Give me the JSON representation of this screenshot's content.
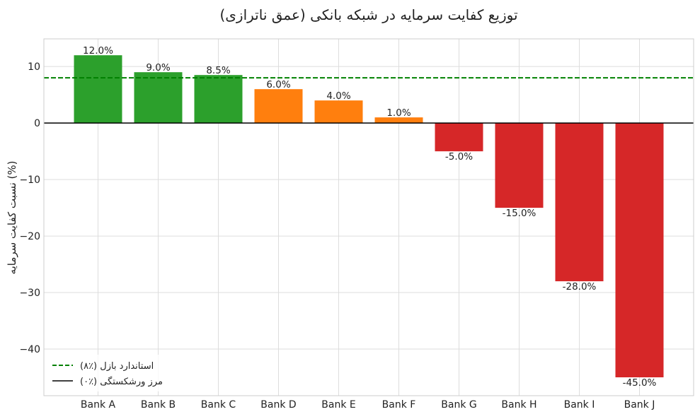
{
  "chart_data": {
    "type": "bar",
    "title": "توزیع کفایت سرمایه در شبکه بانکی (عمق ناترازی)",
    "xlabel": "",
    "ylabel": "نسبت کفایت سرمایه (%)",
    "categories": [
      "Bank A",
      "Bank B",
      "Bank C",
      "Bank D",
      "Bank E",
      "Bank F",
      "Bank G",
      "Bank H",
      "Bank I",
      "Bank J"
    ],
    "values": [
      12.0,
      9.0,
      8.5,
      6.0,
      4.0,
      1.0,
      -5.0,
      -15.0,
      -28.0,
      -45.0
    ],
    "labels": [
      "12.0%",
      "9.0%",
      "8.5%",
      "6.0%",
      "4.0%",
      "1.0%",
      "-5.0%",
      "-15.0%",
      "-28.0%",
      "-45.0%"
    ],
    "colors": [
      "#2ca02c",
      "#2ca02c",
      "#2ca02c",
      "#ff7f0e",
      "#ff7f0e",
      "#ff7f0e",
      "#d62728",
      "#d62728",
      "#d62728",
      "#d62728"
    ],
    "ylim": [
      -48.25,
      14.9
    ],
    "xlim": [
      -0.9,
      9.9
    ],
    "yticks": [
      10,
      0,
      -10,
      -20,
      -30,
      -40
    ],
    "ytick_labels": [
      "10",
      "0",
      "−10",
      "−20",
      "−30",
      "−40"
    ],
    "grid": true,
    "hlines": [
      {
        "y": 8,
        "color": "#008000",
        "style": "dashed",
        "label": "استاندارد بازل (٪۸)"
      },
      {
        "y": 0,
        "color": "#000000",
        "style": "solid",
        "label": "مرز ورشکستگی (٪۰)"
      }
    ],
    "legend": "bottom-left"
  }
}
